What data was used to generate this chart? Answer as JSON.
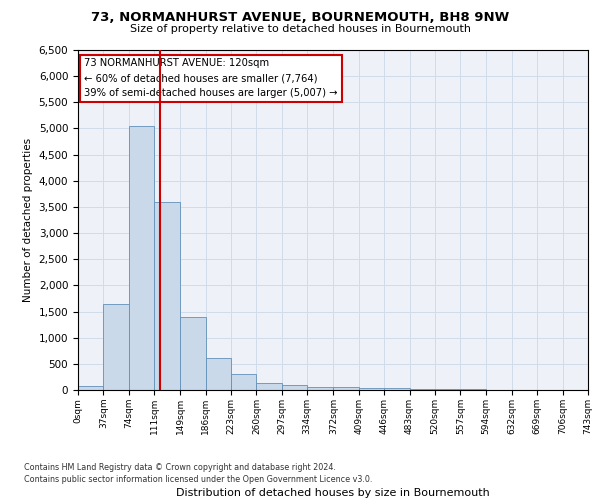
{
  "title": "73, NORMANHURST AVENUE, BOURNEMOUTH, BH8 9NW",
  "subtitle": "Size of property relative to detached houses in Bournemouth",
  "xlabel": "Distribution of detached houses by size in Bournemouth",
  "ylabel": "Number of detached properties",
  "bar_color": "#c9d9ea",
  "bar_edge_color": "#6090b8",
  "grid_color": "#d0dcea",
  "background_color": "#eef2f8",
  "bin_edges": [
    0,
    37,
    74,
    111,
    149,
    186,
    223,
    260,
    297,
    334,
    372,
    409,
    446,
    483,
    520,
    557,
    594,
    632,
    669,
    706,
    743
  ],
  "bar_heights": [
    75,
    1650,
    5050,
    3600,
    1400,
    620,
    305,
    140,
    90,
    50,
    50,
    45,
    30,
    20,
    15,
    10,
    8,
    5,
    4,
    3
  ],
  "ylim": [
    0,
    6500
  ],
  "yticks": [
    0,
    500,
    1000,
    1500,
    2000,
    2500,
    3000,
    3500,
    4000,
    4500,
    5000,
    5500,
    6000,
    6500
  ],
  "vline_x": 120,
  "vline_color": "#cc0000",
  "annotation_line1": "73 NORMANHURST AVENUE: 120sqm",
  "annotation_line2": "← 60% of detached houses are smaller (7,764)",
  "annotation_line3": "39% of semi-detached houses are larger (5,007) →",
  "annotation_box_edgecolor": "#cc0000",
  "footnote1": "Contains HM Land Registry data © Crown copyright and database right 2024.",
  "footnote2": "Contains public sector information licensed under the Open Government Licence v3.0.",
  "tick_labels": [
    "0sqm",
    "37sqm",
    "74sqm",
    "111sqm",
    "149sqm",
    "186sqm",
    "223sqm",
    "260sqm",
    "297sqm",
    "334sqm",
    "372sqm",
    "409sqm",
    "446sqm",
    "483sqm",
    "520sqm",
    "557sqm",
    "594sqm",
    "632sqm",
    "669sqm",
    "706sqm",
    "743sqm"
  ]
}
